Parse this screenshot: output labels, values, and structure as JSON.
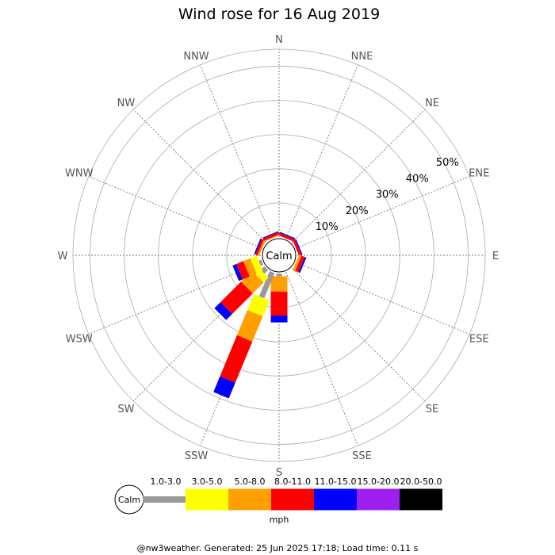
{
  "chart_data": {
    "type": "wind-rose",
    "title": "Wind rose for 16 Aug 2019",
    "calm_label": "Calm",
    "directions": [
      "N",
      "NNE",
      "NE",
      "ENE",
      "E",
      "ESE",
      "SE",
      "SSE",
      "S",
      "SSW",
      "SW",
      "WSW",
      "W",
      "WNW",
      "NW",
      "NNW"
    ],
    "radial_ticks": [
      "10%",
      "20%",
      "30%",
      "40%",
      "50%"
    ],
    "radial_values": [
      10,
      20,
      30,
      40,
      50
    ],
    "radial_max": 55,
    "speed_bins": [
      {
        "label": "1.0-3.0",
        "color": "#999999"
      },
      {
        "label": "3.0-5.0",
        "color": "#ffff00"
      },
      {
        "label": "5.0-8.0",
        "color": "#ff9f00"
      },
      {
        "label": "8.0-11.0",
        "color": "#ff0000"
      },
      {
        "label": "11.0-15.0",
        "color": "#0000ff"
      },
      {
        "label": "15.0-20.0",
        "color": "#9f1fef"
      },
      {
        "label": "20.0-50.0",
        "color": "#000000"
      }
    ],
    "unit": "mph",
    "series": [
      {
        "direction": "NNE",
        "values": [
          0,
          0,
          0,
          0.8,
          0.3,
          0,
          0
        ]
      },
      {
        "direction": "ENE",
        "values": [
          0,
          0,
          0,
          0.8,
          0.3,
          0,
          0
        ]
      },
      {
        "direction": "ESE",
        "values": [
          0,
          0,
          0.8,
          1.0,
          0.5,
          0,
          0
        ]
      },
      {
        "direction": "S",
        "values": [
          0.8,
          0,
          4.5,
          7.0,
          2.0,
          0,
          0
        ]
      },
      {
        "direction": "SSW",
        "values": [
          8.0,
          5.0,
          8.0,
          13.0,
          5.0,
          0,
          0
        ]
      },
      {
        "direction": "SW",
        "values": [
          1.5,
          2.0,
          4.5,
          8.5,
          2.5,
          0,
          0
        ]
      },
      {
        "direction": "WSW",
        "values": [
          0.8,
          2.0,
          2.2,
          2.2,
          1.2,
          0,
          0
        ]
      },
      {
        "direction": "WNW",
        "values": [
          0,
          0,
          0.5,
          0.7,
          0.4,
          0,
          0
        ]
      },
      {
        "direction": "NNW",
        "values": [
          0,
          0,
          0.3,
          0.7,
          0.3,
          0,
          0
        ]
      }
    ]
  },
  "footer": "@nw3weather. Generated: 25 Jun 2025 17:18; Load time: 0.11 s"
}
